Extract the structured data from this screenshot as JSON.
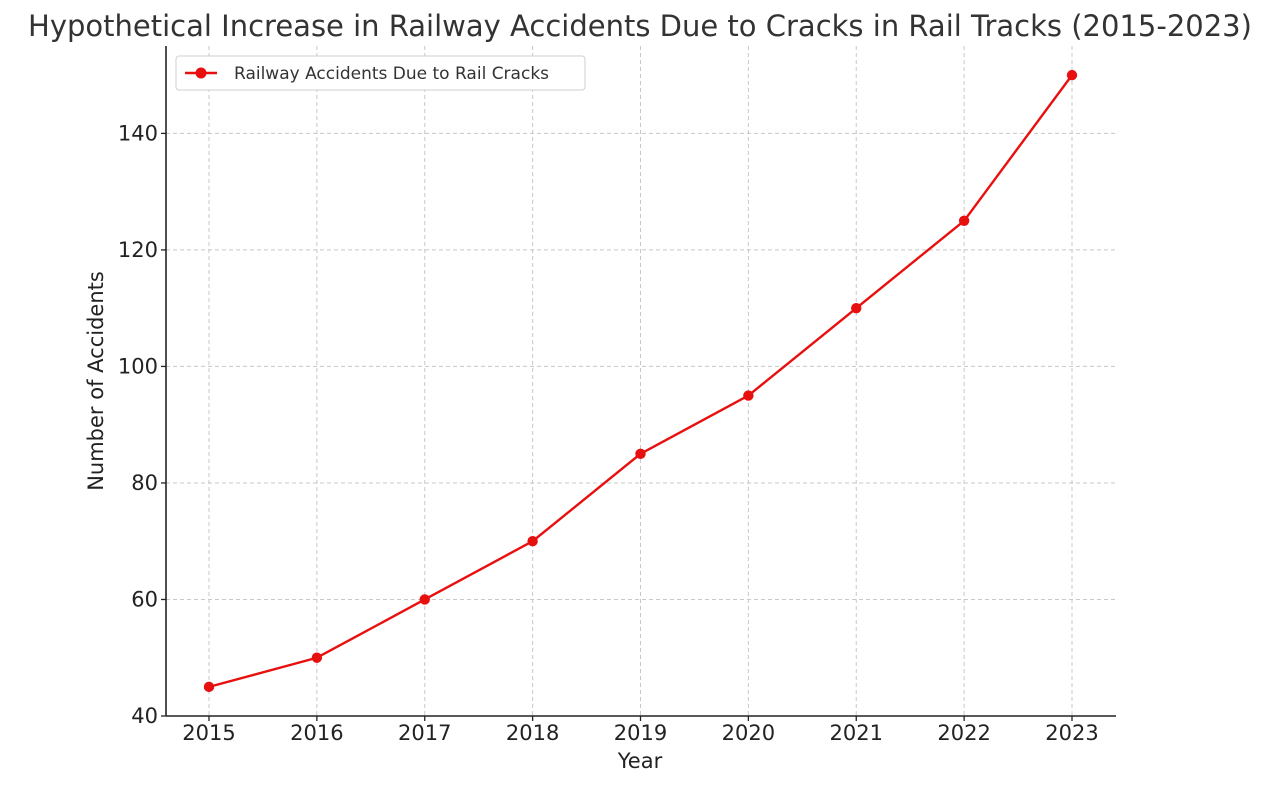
{
  "chart_data": {
    "type": "line",
    "title": "Hypothetical Increase in Railway Accidents Due to Cracks in Rail Tracks (2015-2023)",
    "xlabel": "Year",
    "ylabel": "Number of Accidents",
    "categories": [
      "2015",
      "2016",
      "2017",
      "2018",
      "2019",
      "2020",
      "2021",
      "2022",
      "2023"
    ],
    "series": [
      {
        "name": "Railway Accidents Due to Rail Cracks",
        "values": [
          45,
          50,
          60,
          70,
          85,
          95,
          110,
          125,
          150
        ],
        "color": "#e8100f",
        "marker": "circle"
      }
    ],
    "ylim": [
      40,
      155
    ],
    "yticks": [
      40,
      60,
      80,
      100,
      120,
      140
    ],
    "grid": true,
    "legend": "top-left"
  }
}
